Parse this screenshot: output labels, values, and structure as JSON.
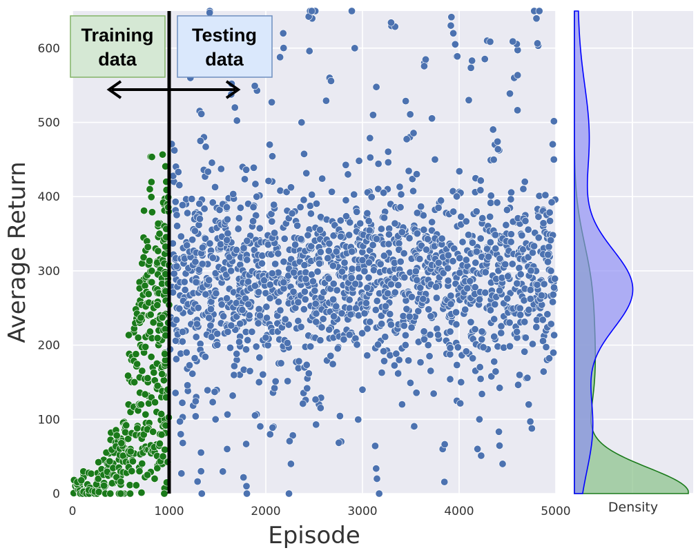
{
  "chart_data": {
    "type": "scatter",
    "xlabel": "Episode",
    "ylabel": "Average Return",
    "xlim": [
      0,
      5000
    ],
    "ylim": [
      0,
      650
    ],
    "x_ticks": [
      "0",
      "1000",
      "2000",
      "3000",
      "4000",
      "5000"
    ],
    "y_ticks": [
      "0",
      "100",
      "200",
      "300",
      "400",
      "500",
      "600"
    ],
    "split_episode": 1000,
    "series": [
      {
        "name": "Training data",
        "color": "#1a7a1a",
        "episodes": [
          0,
          1000
        ],
        "points": [
          [
            30,
            10
          ],
          [
            60,
            5
          ],
          [
            80,
            15
          ],
          [
            110,
            3
          ],
          [
            150,
            12
          ],
          [
            180,
            8
          ],
          [
            220,
            2
          ],
          [
            260,
            18
          ],
          [
            300,
            25
          ],
          [
            330,
            9
          ],
          [
            360,
            40
          ],
          [
            390,
            30
          ],
          [
            410,
            14
          ],
          [
            430,
            55
          ],
          [
            450,
            22
          ],
          [
            470,
            70
          ],
          [
            480,
            35
          ],
          [
            500,
            12
          ],
          [
            520,
            95
          ],
          [
            540,
            48
          ],
          [
            560,
            28
          ],
          [
            580,
            120
          ],
          [
            600,
            60
          ],
          [
            610,
            180
          ],
          [
            620,
            45
          ],
          [
            640,
            150
          ],
          [
            650,
            230
          ],
          [
            660,
            80
          ],
          [
            680,
            210
          ],
          [
            690,
            35
          ],
          [
            700,
            260
          ],
          [
            710,
            120
          ],
          [
            720,
            310
          ],
          [
            730,
            55
          ],
          [
            740,
            190
          ],
          [
            750,
            280
          ],
          [
            760,
            95
          ],
          [
            770,
            340
          ],
          [
            780,
            150
          ],
          [
            790,
            240
          ],
          [
            800,
            410
          ],
          [
            810,
            65
          ],
          [
            820,
            300
          ],
          [
            830,
            170
          ],
          [
            840,
            250
          ],
          [
            850,
            20
          ],
          [
            860,
            330
          ],
          [
            870,
            110
          ],
          [
            880,
            270
          ],
          [
            890,
            200
          ],
          [
            900,
            350
          ],
          [
            905,
            80
          ],
          [
            910,
            240
          ],
          [
            920,
            130
          ],
          [
            925,
            290
          ],
          [
            930,
            40
          ],
          [
            940,
            220
          ],
          [
            945,
            390
          ],
          [
            950,
            310
          ],
          [
            955,
            100
          ],
          [
            960,
            175
          ],
          [
            965,
            260
          ],
          [
            970,
            420
          ],
          [
            975,
            15
          ],
          [
            980,
            330
          ],
          [
            985,
            140
          ],
          [
            990,
            230
          ],
          [
            995,
            380
          ]
        ]
      },
      {
        "name": "Testing data",
        "color": "#4c72b0",
        "episodes": [
          1000,
          5000
        ],
        "points": [
          [
            1050,
            420
          ],
          [
            1080,
            250
          ],
          [
            1120,
            80
          ],
          [
            1150,
            310
          ],
          [
            1180,
            190
          ],
          [
            1220,
            560
          ],
          [
            1250,
            270
          ],
          [
            1280,
            130
          ],
          [
            1300,
            350
          ],
          [
            1330,
            30
          ],
          [
            1360,
            480
          ],
          [
            1390,
            290
          ],
          [
            1420,
            220
          ],
          [
            1450,
            610
          ],
          [
            1480,
            100
          ],
          [
            1510,
            330
          ],
          [
            1540,
            260
          ],
          [
            1570,
            390
          ],
          [
            1600,
            60
          ],
          [
            1640,
            300
          ],
          [
            1680,
            520
          ],
          [
            1700,
            180
          ],
          [
            1730,
            280
          ],
          [
            1760,
            440
          ],
          [
            1800,
            10
          ],
          [
            1830,
            240
          ],
          [
            1860,
            360
          ],
          [
            1900,
            590
          ],
          [
            1930,
            150
          ],
          [
            1960,
            310
          ],
          [
            2000,
            270
          ],
          [
            2040,
            470
          ],
          [
            2080,
            90
          ],
          [
            2110,
            330
          ],
          [
            2150,
            230
          ],
          [
            2180,
            620
          ],
          [
            2220,
            290
          ],
          [
            2260,
            40
          ],
          [
            2300,
            380
          ],
          [
            2330,
            260
          ],
          [
            2370,
            500
          ],
          [
            2400,
            170
          ],
          [
            2440,
            310
          ],
          [
            2480,
            640
          ],
          [
            2510,
            250
          ],
          [
            2550,
            120
          ],
          [
            2590,
            350
          ],
          [
            2620,
            290
          ],
          [
            2660,
            560
          ],
          [
            2700,
            210
          ],
          [
            2740,
            330
          ],
          [
            2780,
            70
          ],
          [
            2810,
            270
          ],
          [
            2850,
            430
          ],
          [
            2890,
            300
          ],
          [
            2920,
            600
          ],
          [
            2960,
            240
          ],
          [
            3000,
            140
          ],
          [
            3040,
            340
          ],
          [
            3080,
            280
          ],
          [
            3110,
            510
          ],
          [
            3150,
            20
          ],
          [
            3190,
            310
          ],
          [
            3230,
            250
          ],
          [
            3260,
            410
          ],
          [
            3300,
            630
          ],
          [
            3340,
            290
          ],
          [
            3380,
            180
          ],
          [
            3410,
            350
          ],
          [
            3450,
            260
          ],
          [
            3490,
            480
          ],
          [
            3530,
            90
          ],
          [
            3560,
            320
          ],
          [
            3600,
            270
          ],
          [
            3640,
            580
          ],
          [
            3680,
            200
          ],
          [
            3710,
            340
          ],
          [
            3750,
            450
          ],
          [
            3790,
            280
          ],
          [
            3830,
            60
          ],
          [
            3860,
            310
          ],
          [
            3900,
            240
          ],
          [
            3940,
            620
          ],
          [
            3980,
            360
          ],
          [
            4020,
            150
          ],
          [
            4060,
            290
          ],
          [
            4100,
            530
          ],
          [
            4140,
            260
          ],
          [
            4180,
            380
          ],
          [
            4210,
            100
          ],
          [
            4250,
            320
          ],
          [
            4290,
            610
          ],
          [
            4330,
            230
          ],
          [
            4370,
            470
          ],
          [
            4410,
            300
          ],
          [
            4450,
            40
          ],
          [
            4490,
            350
          ],
          [
            4530,
            270
          ],
          [
            4570,
            560
          ],
          [
            4600,
            210
          ],
          [
            4640,
            330
          ],
          [
            4680,
            420
          ],
          [
            4720,
            120
          ],
          [
            4760,
            290
          ],
          [
            4800,
            640
          ],
          [
            4840,
            250
          ],
          [
            4870,
            360
          ],
          [
            4910,
            180
          ],
          [
            4950,
            300
          ],
          [
            4980,
            450
          ]
        ]
      }
    ],
    "annotations": {
      "training_label_line1": "Training",
      "training_label_line2": "data",
      "testing_label_line1": "Testing",
      "testing_label_line2": "data"
    },
    "density_panel": {
      "label": "Density",
      "series": [
        {
          "name": "Testing data",
          "color": "#0000ff",
          "fill": "#8c8cf5"
        },
        {
          "name": "Training data",
          "color": "#1a7a1a",
          "fill": "#8fc48f"
        }
      ]
    }
  }
}
